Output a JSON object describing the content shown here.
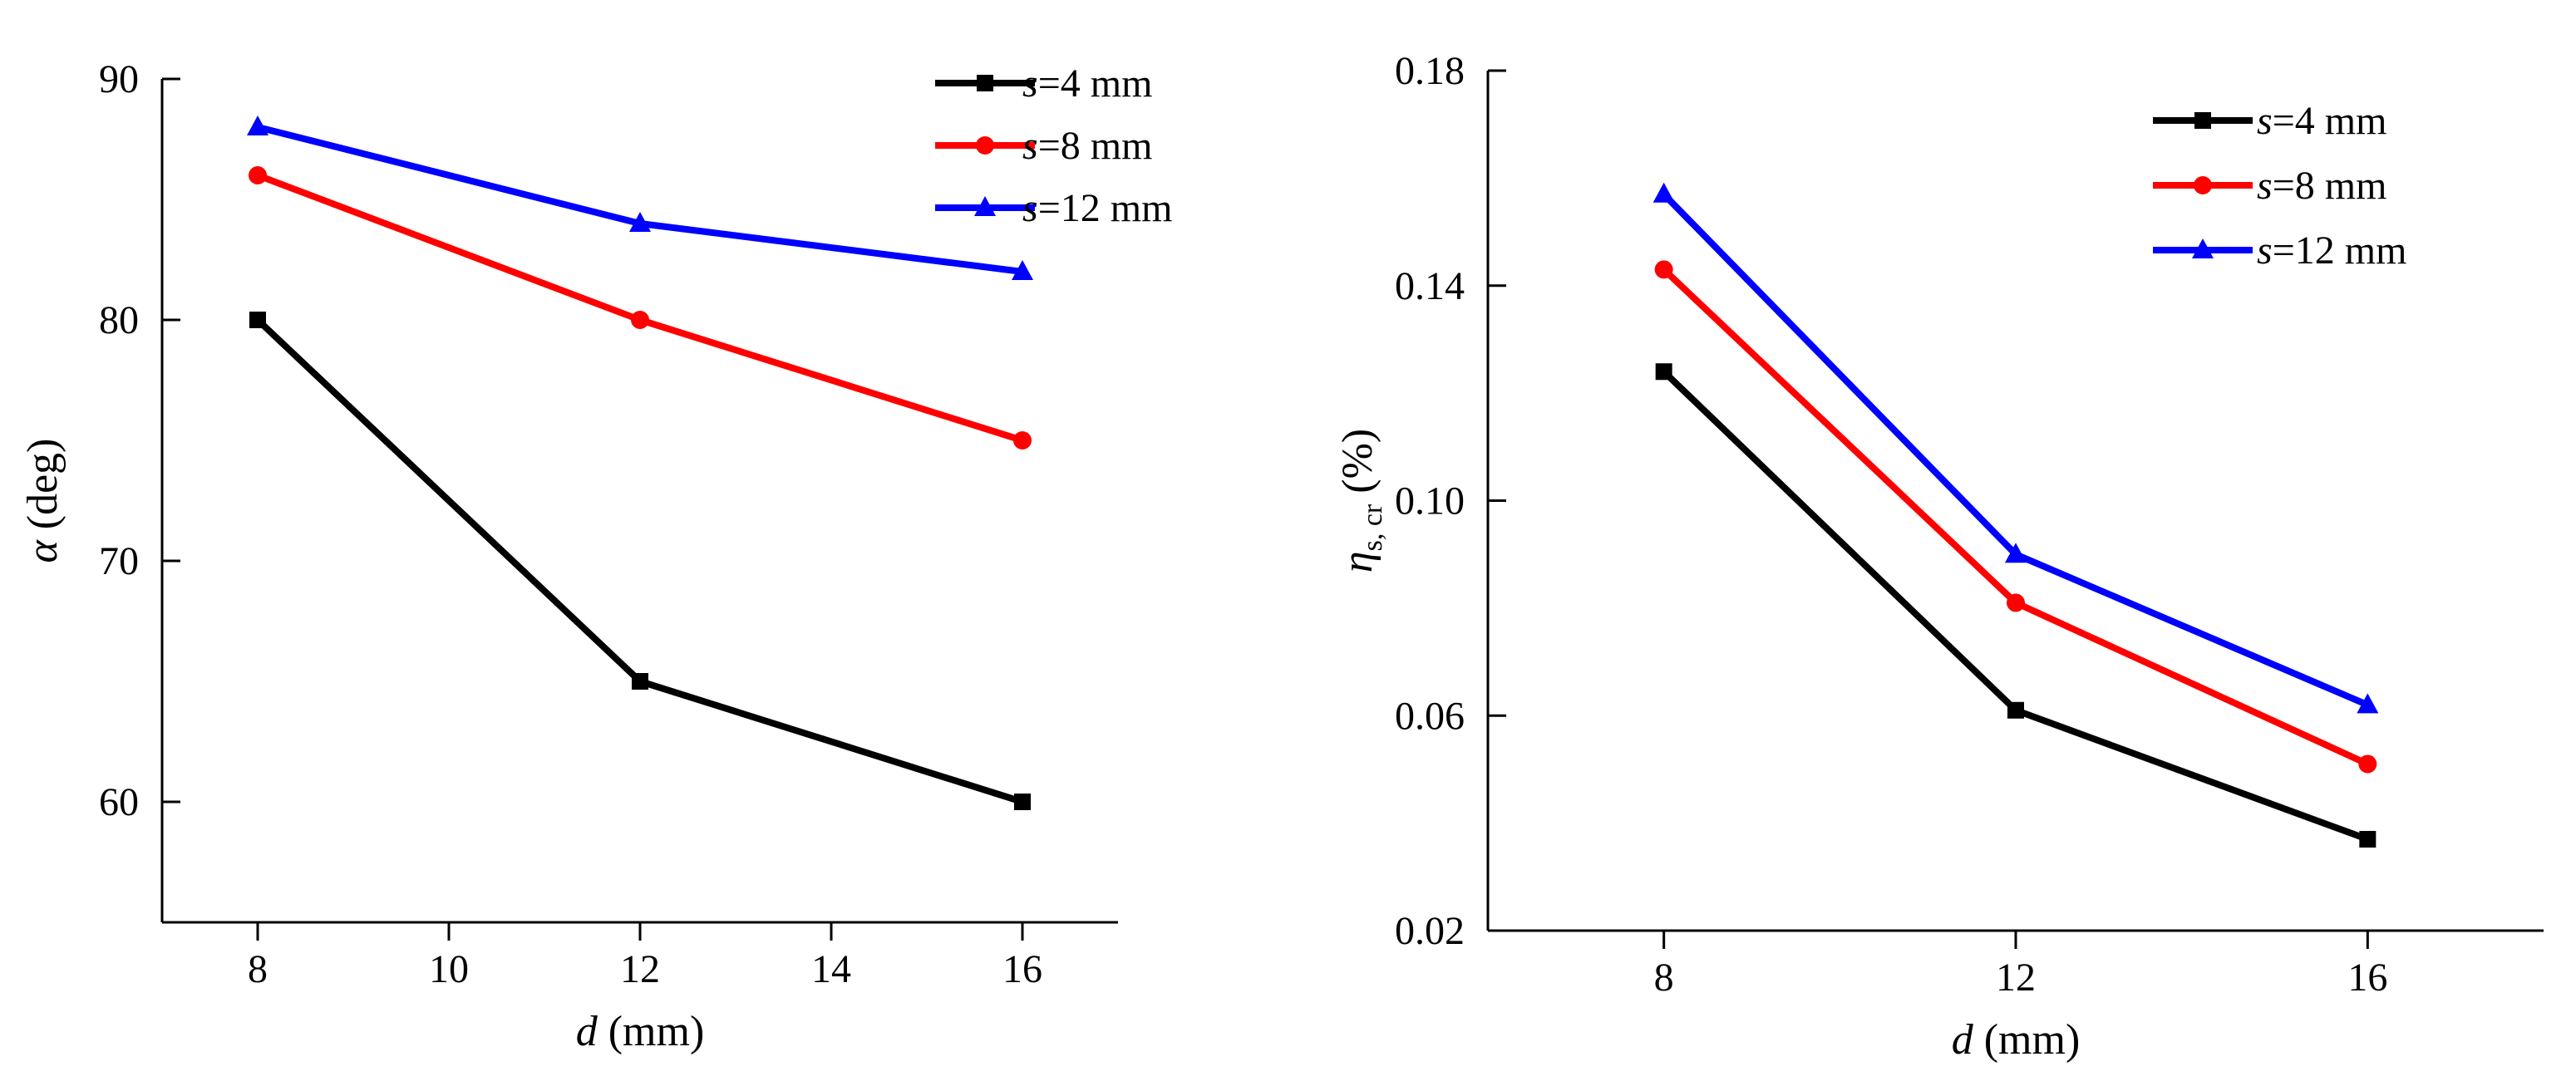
{
  "chart_data": [
    {
      "type": "line",
      "title": "",
      "xlabel": {
        "var": "d",
        "unit": " (mm)"
      },
      "ylabel": {
        "var": "α",
        "unit": " (deg)"
      },
      "xlim": [
        7,
        17
      ],
      "ylim": [
        55,
        90
      ],
      "x": [
        8,
        12,
        16
      ],
      "xticks": [
        8,
        10,
        12,
        14,
        16
      ],
      "yticks": [
        60,
        70,
        80,
        90
      ],
      "grid": false,
      "legend_position": "top-right",
      "series": [
        {
          "name": "s=4 mm",
          "var": "s",
          "label_rest": "=4 mm",
          "color": "#000000",
          "marker": "square",
          "values": [
            80,
            65,
            60
          ]
        },
        {
          "name": "s=8 mm",
          "var": "s",
          "label_rest": "=8 mm",
          "color": "#ff0000",
          "marker": "circle",
          "values": [
            86,
            80,
            75
          ]
        },
        {
          "name": "s=12 mm",
          "var": "s",
          "label_rest": "=12 mm",
          "color": "#0000ff",
          "marker": "triangle",
          "values": [
            88,
            84,
            82
          ]
        }
      ]
    },
    {
      "type": "line",
      "title": "",
      "xlabel": {
        "var": "d",
        "unit": " (mm)"
      },
      "ylabel": {
        "var": "η",
        "sub": "s, cr",
        "unit": " (%)"
      },
      "xlim": [
        6,
        18
      ],
      "ylim": [
        0.02,
        0.18
      ],
      "x": [
        8,
        12,
        16
      ],
      "xticks": [
        8,
        12,
        16
      ],
      "yticks": [
        0.02,
        0.06,
        0.1,
        0.14,
        0.18
      ],
      "ytick_labels": [
        "0.02",
        "0.06",
        "0.10",
        "0.14",
        "0.18"
      ],
      "grid": false,
      "legend_position": "top-right",
      "series": [
        {
          "name": "s=4 mm",
          "var": "s",
          "label_rest": "=4 mm",
          "color": "#000000",
          "marker": "square",
          "values": [
            0.124,
            0.061,
            0.037
          ]
        },
        {
          "name": "s=8 mm",
          "var": "s",
          "label_rest": "=8 mm",
          "color": "#ff0000",
          "marker": "circle",
          "values": [
            0.143,
            0.081,
            0.051
          ]
        },
        {
          "name": "s=12 mm",
          "var": "s",
          "label_rest": "=12 mm",
          "color": "#0000ff",
          "marker": "triangle",
          "values": [
            0.157,
            0.09,
            0.062
          ]
        }
      ]
    }
  ]
}
